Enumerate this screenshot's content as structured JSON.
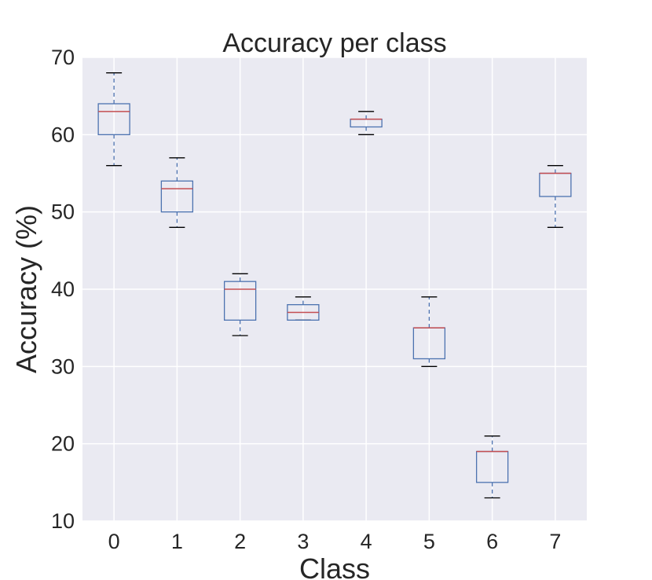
{
  "chart_data": {
    "type": "box",
    "title": "Accuracy per class",
    "xlabel": "Class",
    "ylabel": "Accuracy (%)",
    "ylim": [
      10,
      70
    ],
    "yticks": [
      10,
      20,
      30,
      40,
      50,
      60,
      70
    ],
    "grid": true,
    "categories": [
      "0",
      "1",
      "2",
      "3",
      "4",
      "5",
      "6",
      "7"
    ],
    "boxes": [
      {
        "min": 56,
        "q1": 60,
        "median": 63,
        "q3": 64,
        "max": 68
      },
      {
        "min": 48,
        "q1": 50,
        "median": 53,
        "q3": 54,
        "max": 57
      },
      {
        "min": 34,
        "q1": 36,
        "median": 40,
        "q3": 41,
        "max": 42
      },
      {
        "min": 36,
        "q1": 36,
        "median": 37,
        "q3": 38,
        "max": 39
      },
      {
        "min": 60,
        "q1": 61,
        "median": 62,
        "q3": 62,
        "max": 63
      },
      {
        "min": 30,
        "q1": 31,
        "median": 35,
        "q3": 35,
        "max": 39
      },
      {
        "min": 13,
        "q1": 15,
        "median": 19,
        "q3": 19,
        "max": 21
      },
      {
        "min": 48,
        "q1": 52,
        "median": 55,
        "q3": 55,
        "max": 56
      }
    ],
    "colors": {
      "background": "#eaeaf2",
      "grid": "#ffffff",
      "box": "#4c72b0",
      "median": "#c44e52",
      "cap": "#000000",
      "text": "#262626"
    }
  }
}
